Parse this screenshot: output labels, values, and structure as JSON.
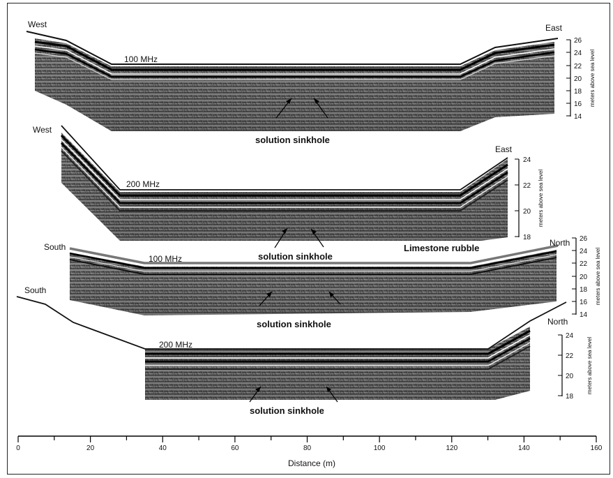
{
  "profiles": [
    {
      "left": "West",
      "right": "East",
      "freq": "100 MHz",
      "annotation": "solution sinkhole",
      "axis_label": "meters above sea level",
      "ticks": [
        "26",
        "24",
        "22",
        "20",
        "18",
        "16",
        "14"
      ]
    },
    {
      "left": "West",
      "right": "East",
      "freq": "200 MHz",
      "annotation": "solution sinkhole",
      "extra_label": "Limestone  rubble",
      "axis_label": "meters above sea level",
      "ticks": [
        "24",
        "22",
        "20",
        "18"
      ]
    },
    {
      "left": "South",
      "right": "North",
      "freq": "100 MHz",
      "annotation": "solution sinkhole",
      "axis_label": "meters above sea level",
      "ticks": [
        "26",
        "24",
        "22",
        "20",
        "18",
        "16",
        "14"
      ]
    },
    {
      "left": "South",
      "right": "North",
      "freq": "200 MHz",
      "annotation": "solution sinkhole",
      "axis_label": "meters above sea level",
      "ticks": [
        "24",
        "22",
        "20",
        "18"
      ]
    }
  ],
  "distance_axis": {
    "label": "Distance (m)",
    "ticks": [
      "0",
      "20",
      "40",
      "60",
      "80",
      "100",
      "120",
      "140",
      "160"
    ]
  }
}
